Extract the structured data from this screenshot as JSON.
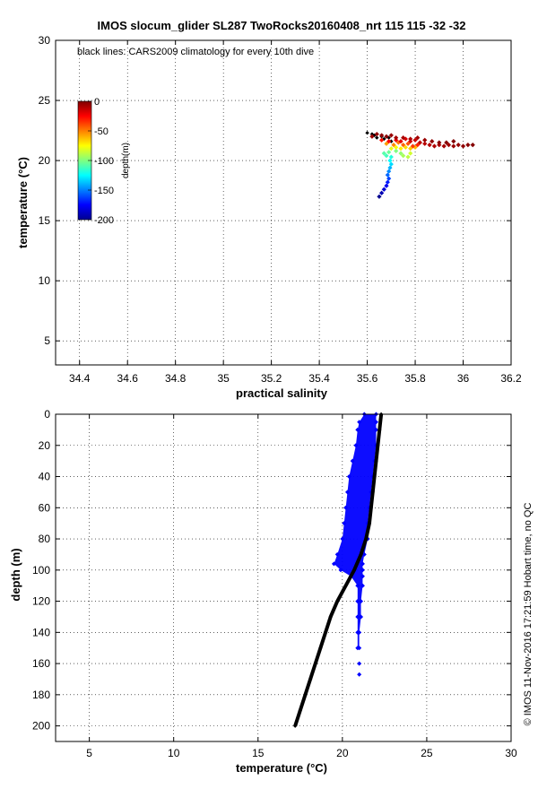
{
  "chart_data": [
    {
      "type": "scatter",
      "title": "IMOS slocum_glider SL287 TwoRocks20160408_nrt 115  115  -32  -32",
      "xlabel": "practical salinity",
      "ylabel": "temperature (°C)",
      "xlim": [
        34.3,
        36.2
      ],
      "ylim": [
        3,
        30
      ],
      "xticks": [
        34.4,
        34.6,
        34.8,
        35,
        35.2,
        35.4,
        35.6,
        35.8,
        36,
        36.2
      ],
      "xtick_labels": [
        "34.4",
        "34.6",
        "34.8",
        "35",
        "35.2",
        "35.4",
        "35.6",
        "35.8",
        "36",
        "36.2"
      ],
      "yticks": [
        5,
        10,
        15,
        20,
        25,
        30
      ],
      "ytick_labels": [
        "5",
        "10",
        "15",
        "20",
        "25",
        "30"
      ],
      "grid": true,
      "annotation": "black lines: CARS2009 climatology for every 10th dive",
      "colorbar": {
        "label": "depth(m)",
        "range": [
          -200,
          0
        ],
        "ticks": [
          0,
          -50,
          -100,
          -150,
          -200
        ],
        "tick_labels": [
          "0",
          "-50",
          "-100",
          "-150",
          "-200"
        ],
        "colormap": [
          "#00008f",
          "#0000ff",
          "#0080ff",
          "#00ffff",
          "#80ff80",
          "#ffff00",
          "#ff8000",
          "#ff0000",
          "#800000"
        ]
      },
      "series": [
        {
          "points": [
            {
              "x": 35.65,
              "y": 17.0,
              "depth": -200
            },
            {
              "x": 35.66,
              "y": 17.3,
              "depth": -192
            },
            {
              "x": 35.67,
              "y": 17.6,
              "depth": -185
            },
            {
              "x": 35.68,
              "y": 17.9,
              "depth": -178
            },
            {
              "x": 35.685,
              "y": 18.2,
              "depth": -170
            },
            {
              "x": 35.69,
              "y": 18.5,
              "depth": -162
            },
            {
              "x": 35.685,
              "y": 18.8,
              "depth": -155
            },
            {
              "x": 35.69,
              "y": 19.1,
              "depth": -148
            },
            {
              "x": 35.695,
              "y": 19.4,
              "depth": -140
            },
            {
              "x": 35.7,
              "y": 19.7,
              "depth": -132
            },
            {
              "x": 35.695,
              "y": 20.0,
              "depth": -125
            },
            {
              "x": 35.7,
              "y": 20.3,
              "depth": -118
            },
            {
              "x": 35.68,
              "y": 20.4,
              "depth": -112
            },
            {
              "x": 35.67,
              "y": 20.6,
              "depth": -108
            },
            {
              "x": 35.69,
              "y": 20.7,
              "depth": -104
            },
            {
              "x": 35.72,
              "y": 20.8,
              "depth": -100
            },
            {
              "x": 35.74,
              "y": 20.6,
              "depth": -96
            },
            {
              "x": 35.75,
              "y": 20.4,
              "depth": -92
            },
            {
              "x": 35.77,
              "y": 20.3,
              "depth": -88
            },
            {
              "x": 35.78,
              "y": 20.6,
              "depth": -84
            },
            {
              "x": 35.7,
              "y": 21.0,
              "depth": -80
            },
            {
              "x": 35.72,
              "y": 21.1,
              "depth": -76
            },
            {
              "x": 35.74,
              "y": 21.0,
              "depth": -72
            },
            {
              "x": 35.76,
              "y": 21.1,
              "depth": -68
            },
            {
              "x": 35.78,
              "y": 21.0,
              "depth": -64
            },
            {
              "x": 35.8,
              "y": 21.1,
              "depth": -60
            },
            {
              "x": 35.68,
              "y": 21.4,
              "depth": -56
            },
            {
              "x": 35.71,
              "y": 21.3,
              "depth": -52
            },
            {
              "x": 35.73,
              "y": 21.5,
              "depth": -48
            },
            {
              "x": 35.75,
              "y": 21.3,
              "depth": -44
            },
            {
              "x": 35.77,
              "y": 21.4,
              "depth": -40
            },
            {
              "x": 35.79,
              "y": 21.2,
              "depth": -36
            },
            {
              "x": 35.81,
              "y": 21.3,
              "depth": -32
            },
            {
              "x": 35.66,
              "y": 21.7,
              "depth": -28
            },
            {
              "x": 35.69,
              "y": 21.6,
              "depth": -25
            },
            {
              "x": 35.72,
              "y": 21.7,
              "depth": -22
            },
            {
              "x": 35.74,
              "y": 21.6,
              "depth": -20
            },
            {
              "x": 35.76,
              "y": 21.8,
              "depth": -18
            },
            {
              "x": 35.78,
              "y": 21.6,
              "depth": -16
            },
            {
              "x": 35.8,
              "y": 21.7,
              "depth": -14
            },
            {
              "x": 35.82,
              "y": 21.5,
              "depth": -12
            },
            {
              "x": 35.84,
              "y": 21.4,
              "depth": -11
            },
            {
              "x": 35.86,
              "y": 21.3,
              "depth": -10
            },
            {
              "x": 35.88,
              "y": 21.2,
              "depth": -9
            },
            {
              "x": 35.9,
              "y": 21.3,
              "depth": -8
            },
            {
              "x": 35.92,
              "y": 21.2,
              "depth": -7
            },
            {
              "x": 35.94,
              "y": 21.3,
              "depth": -6
            },
            {
              "x": 35.96,
              "y": 21.2,
              "depth": -5
            },
            {
              "x": 35.98,
              "y": 21.3,
              "depth": -4
            },
            {
              "x": 36.0,
              "y": 21.2,
              "depth": -3
            },
            {
              "x": 36.02,
              "y": 21.3,
              "depth": -2
            },
            {
              "x": 36.04,
              "y": 21.3,
              "depth": -1
            },
            {
              "x": 35.62,
              "y": 22.0,
              "depth": -6
            },
            {
              "x": 35.64,
              "y": 22.2,
              "depth": -4
            },
            {
              "x": 35.66,
              "y": 22.1,
              "depth": -3
            },
            {
              "x": 35.68,
              "y": 22.0,
              "depth": -2
            },
            {
              "x": 35.7,
              "y": 22.1,
              "depth": -5
            },
            {
              "x": 35.72,
              "y": 21.9,
              "depth": -7
            },
            {
              "x": 35.75,
              "y": 21.9,
              "depth": -8
            },
            {
              "x": 35.78,
              "y": 21.8,
              "depth": -9
            },
            {
              "x": 35.81,
              "y": 21.9,
              "depth": -7
            },
            {
              "x": 35.84,
              "y": 21.7,
              "depth": -5
            },
            {
              "x": 35.87,
              "y": 21.6,
              "depth": -3
            },
            {
              "x": 35.9,
              "y": 21.5,
              "depth": -2
            },
            {
              "x": 35.93,
              "y": 21.5,
              "depth": -1
            },
            {
              "x": 35.96,
              "y": 21.6,
              "depth": 0
            }
          ]
        },
        {
          "color": "#000000",
          "points": [
            {
              "x": 35.6,
              "y": 22.3
            },
            {
              "x": 35.62,
              "y": 22.2
            },
            {
              "x": 35.63,
              "y": 22.1
            },
            {
              "x": 35.64,
              "y": 21.9
            },
            {
              "x": 35.66,
              "y": 22.0
            },
            {
              "x": 35.67,
              "y": 21.8
            },
            {
              "x": 35.69,
              "y": 21.9
            },
            {
              "x": 35.7,
              "y": 21.6
            }
          ]
        }
      ]
    },
    {
      "type": "scatter",
      "xlabel": "temperature (°C)",
      "ylabel": "depth (m)",
      "xlim": [
        3,
        30
      ],
      "ylim": [
        210,
        0
      ],
      "xticks": [
        5,
        10,
        15,
        20,
        25,
        30
      ],
      "xtick_labels": [
        "5",
        "10",
        "15",
        "20",
        "25",
        "30"
      ],
      "yticks": [
        0,
        20,
        40,
        60,
        80,
        100,
        120,
        140,
        160,
        180,
        200
      ],
      "ytick_labels": [
        "0",
        "20",
        "40",
        "60",
        "80",
        "100",
        "120",
        "140",
        "160",
        "180",
        "200"
      ],
      "grid": true,
      "series": [
        {
          "color": "#0000ff",
          "points": [
            {
              "x": 21.3,
              "y": 0
            },
            {
              "x": 22.0,
              "y": 0
            },
            {
              "x": 21.0,
              "y": 5
            },
            {
              "x": 22.0,
              "y": 5
            },
            {
              "x": 20.9,
              "y": 10
            },
            {
              "x": 22.0,
              "y": 10
            },
            {
              "x": 20.8,
              "y": 20
            },
            {
              "x": 22.0,
              "y": 20
            },
            {
              "x": 20.6,
              "y": 30
            },
            {
              "x": 21.9,
              "y": 30
            },
            {
              "x": 20.4,
              "y": 40
            },
            {
              "x": 21.8,
              "y": 40
            },
            {
              "x": 20.3,
              "y": 50
            },
            {
              "x": 21.7,
              "y": 50
            },
            {
              "x": 20.2,
              "y": 60
            },
            {
              "x": 21.6,
              "y": 60
            },
            {
              "x": 20.1,
              "y": 70
            },
            {
              "x": 21.5,
              "y": 70
            },
            {
              "x": 20.0,
              "y": 80
            },
            {
              "x": 21.5,
              "y": 80
            },
            {
              "x": 19.7,
              "y": 90
            },
            {
              "x": 21.3,
              "y": 90
            },
            {
              "x": 19.5,
              "y": 96
            },
            {
              "x": 21.2,
              "y": 96
            },
            {
              "x": 19.9,
              "y": 100
            },
            {
              "x": 21.2,
              "y": 100
            },
            {
              "x": 20.5,
              "y": 104
            },
            {
              "x": 21.2,
              "y": 104
            },
            {
              "x": 20.9,
              "y": 110
            },
            {
              "x": 21.2,
              "y": 110
            },
            {
              "x": 20.9,
              "y": 120
            },
            {
              "x": 21.1,
              "y": 120
            },
            {
              "x": 20.9,
              "y": 130
            },
            {
              "x": 21.1,
              "y": 130
            },
            {
              "x": 20.9,
              "y": 140
            },
            {
              "x": 21.0,
              "y": 140
            },
            {
              "x": 20.9,
              "y": 150
            },
            {
              "x": 21.0,
              "y": 150
            },
            {
              "x": 21.0,
              "y": 160
            },
            {
              "x": 21.0,
              "y": 167
            }
          ]
        },
        {
          "color": "#000000",
          "points": [
            {
              "x": 22.3,
              "y": 0
            },
            {
              "x": 22.2,
              "y": 10
            },
            {
              "x": 22.1,
              "y": 20
            },
            {
              "x": 22.0,
              "y": 30
            },
            {
              "x": 21.9,
              "y": 40
            },
            {
              "x": 21.8,
              "y": 50
            },
            {
              "x": 21.7,
              "y": 60
            },
            {
              "x": 21.6,
              "y": 70
            },
            {
              "x": 21.4,
              "y": 80
            },
            {
              "x": 21.1,
              "y": 90
            },
            {
              "x": 20.7,
              "y": 100
            },
            {
              "x": 20.2,
              "y": 110
            },
            {
              "x": 19.7,
              "y": 120
            },
            {
              "x": 19.3,
              "y": 130
            },
            {
              "x": 19.0,
              "y": 140
            },
            {
              "x": 18.7,
              "y": 150
            },
            {
              "x": 18.4,
              "y": 160
            },
            {
              "x": 18.1,
              "y": 170
            },
            {
              "x": 17.8,
              "y": 180
            },
            {
              "x": 17.5,
              "y": 190
            },
            {
              "x": 17.2,
              "y": 200
            }
          ]
        }
      ]
    }
  ],
  "side_text": "© IMOS 11-Nov-2016 17:21:59 Hobart time, no QC"
}
